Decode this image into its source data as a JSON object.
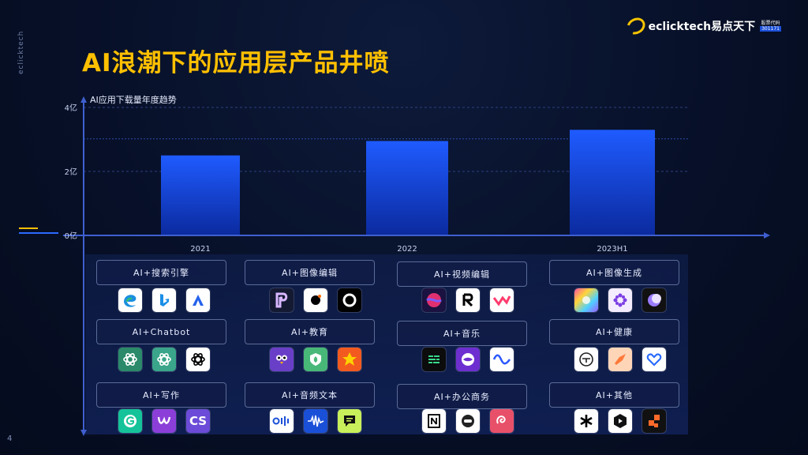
{
  "brand": {
    "side": "eclicktech",
    "logo_text": "eclicktech易点天下",
    "badge_top": "股票代码",
    "badge_code": "301171"
  },
  "title": "AI浪潮下的应用层产品井喷",
  "page_number": "4",
  "colors": {
    "title": "#ffc000",
    "bar_top": "#1f5bff",
    "bar_bottom": "#0b2a9e",
    "axis": "#3f5fd0"
  },
  "chart_data": {
    "type": "bar",
    "title": "AI应用下载量年度趋势",
    "categories": [
      "2021",
      "2022",
      "2023H1"
    ],
    "values": [
      2.5,
      2.95,
      3.3
    ],
    "ytick_labels": [
      "0亿",
      "2亿",
      "4亿"
    ],
    "yticks": [
      0,
      2,
      4
    ],
    "ylim": [
      0,
      4
    ],
    "grid": true
  },
  "categories": [
    {
      "label": "AI+搜索引擎",
      "icons": [
        "edge-icon",
        "bing-icon",
        "perplexity-icon"
      ]
    },
    {
      "label": "AI+图像编辑",
      "icons": [
        "picsart-r-icon",
        "dot-camera-icon",
        "ring-icon"
      ]
    },
    {
      "label": "AI+视频编辑",
      "icons": [
        "sphere-icon",
        "runway-icon",
        "wave-v-icon"
      ]
    },
    {
      "label": "AI+图像生成",
      "icons": [
        "colorful-icon",
        "flower-icon",
        "moon-icon"
      ]
    },
    {
      "label": "AI+Chatbot",
      "icons": [
        "chatgpt-green-icon",
        "chatgpt-teal-icon",
        "chatgpt-white-icon"
      ]
    },
    {
      "label": "AI+教育",
      "icons": [
        "owl-icon",
        "leaf-shield-icon",
        "badge-icon"
      ]
    },
    {
      "label": "AI+音乐",
      "icons": [
        "terminal-icon",
        "bubble-icon",
        "sine-wave-icon"
      ]
    },
    {
      "label": "AI+健康",
      "icons": [
        "face-icon",
        "bird-icon",
        "heart-icon"
      ]
    },
    {
      "label": "AI+写作",
      "icons": [
        "grammarly-icon",
        "w-icon",
        "cs-icon"
      ]
    },
    {
      "label": "AI+音频文本",
      "icons": [
        "otter-icon",
        "waveform-icon",
        "speech-icon"
      ]
    },
    {
      "label": "AI+办公商务",
      "icons": [
        "notion-icon",
        "mask-icon",
        "swirl-icon"
      ]
    },
    {
      "label": "AI+其他",
      "icons": [
        "asterisk-icon",
        "hexagon-icon",
        "blocks-icon"
      ]
    }
  ],
  "icon_texts": {
    "cs": "CS"
  }
}
